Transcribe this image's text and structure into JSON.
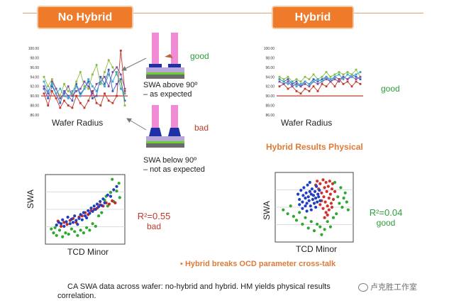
{
  "header": {
    "no_hybrid": "No Hybrid",
    "hybrid": "Hybrid"
  },
  "colors": {
    "accent": "#ef7a2a",
    "good": "#2e9e3b",
    "bad": "#c0392b",
    "baseline": "#c0392b"
  },
  "profiles": {
    "good_label": "good",
    "bad_label": "bad",
    "above_note_1": "SWA above 90º",
    "above_note_2": "– as expected",
    "below_note_1": "SWA below 90º",
    "below_note_2": "– not as expected"
  },
  "hybrid_notes": {
    "good_label": "good",
    "physical": "Hybrid Results Physical",
    "crosstalk": "Hybrid breaks OCD parameter cross-talk"
  },
  "caption": {
    "line1": "CA SWA data across wafer: no-hybrid and hybrid. HM yields physical results",
    "line2": "correlation."
  },
  "watermark": "卢克胜工作室",
  "chart_data": [
    {
      "id": "no-hybrid-radius",
      "type": "line",
      "xlabel": "Wafer Radius",
      "ylim": [
        86,
        100
      ],
      "yticks": [
        "100.00",
        "98.00",
        "96.00",
        "94.00",
        "92.00",
        "90.00",
        "88.00",
        "86.00"
      ],
      "baseline": 90,
      "series": [
        {
          "name": "s1",
          "color": "#3b5fbf",
          "values": [
            91.5,
            89.5,
            92,
            90.5,
            88.5,
            91,
            90,
            89,
            92.5,
            90.5,
            91.5,
            93,
            89.5,
            90,
            94,
            92.5,
            95.5,
            91,
            92.5,
            93.5,
            89
          ]
        },
        {
          "name": "s2",
          "color": "#c0392b",
          "values": [
            90.5,
            88,
            91,
            89.5,
            87.5,
            89,
            88,
            87.5,
            90,
            88.5,
            87.5,
            89,
            91,
            88.5,
            88,
            90.5,
            89,
            88.5,
            90,
            99.5,
            91
          ]
        },
        {
          "name": "s3",
          "color": "#8dbb44",
          "values": [
            94,
            92,
            93.5,
            91.5,
            90,
            92.5,
            91,
            90.5,
            93,
            95,
            92,
            91.5,
            94.5,
            96.5,
            92.5,
            95,
            97.5,
            96,
            94.5,
            93,
            88
          ]
        },
        {
          "name": "s4",
          "color": "#7d4fa5",
          "values": [
            92,
            90.5,
            93,
            91.5,
            89.5,
            90.5,
            92,
            90,
            91,
            91.5,
            93,
            92,
            90.5,
            92.5,
            93,
            94,
            92,
            95,
            96,
            94.5,
            91.5
          ]
        },
        {
          "name": "s5",
          "color": "#3aa6c9",
          "values": [
            93,
            91,
            92.5,
            90.5,
            91.5,
            90,
            89.5,
            91,
            92,
            90,
            91.5,
            93.5,
            92,
            91,
            93,
            92,
            94.5,
            93,
            95,
            91.5,
            90.5
          ]
        }
      ]
    },
    {
      "id": "hybrid-radius",
      "type": "line",
      "xlabel": "Wafer Radius",
      "ylim": [
        86,
        100
      ],
      "yticks": [
        "100.00",
        "98.00",
        "96.00",
        "94.00",
        "92.00",
        "90.00",
        "88.00",
        "86.00"
      ],
      "baseline": 90,
      "series": [
        {
          "name": "s1",
          "color": "#3b5fbf",
          "values": [
            93.5,
            93,
            93.5,
            92.5,
            93,
            92,
            93,
            92.5,
            93.5,
            93,
            93.5,
            94,
            93,
            94,
            93.5,
            94,
            93.5,
            94.5,
            94,
            93.5
          ]
        },
        {
          "name": "s2",
          "color": "#c0392b",
          "values": [
            92,
            92.5,
            91.5,
            92,
            91,
            90.5,
            91.5,
            91,
            92,
            91,
            92.5,
            92,
            93,
            92,
            93.5,
            92.5,
            93,
            92,
            93,
            92.5
          ]
        },
        {
          "name": "s3",
          "color": "#8dbb44",
          "values": [
            94,
            93.5,
            94,
            93,
            93.5,
            93,
            94,
            93.5,
            94.5,
            93.5,
            94,
            95,
            94,
            94.5,
            95,
            94.5,
            95,
            94.5,
            95.5,
            94
          ]
        },
        {
          "name": "s4",
          "color": "#7d4fa5",
          "values": [
            93,
            92.5,
            93,
            92,
            92.5,
            92,
            92.5,
            92,
            93,
            92.5,
            93,
            93.5,
            93,
            93.5,
            93,
            94,
            93.5,
            94,
            93.5,
            94
          ]
        },
        {
          "name": "s5",
          "color": "#3aa6c9",
          "values": [
            93.5,
            93,
            92.5,
            93,
            92,
            92.5,
            93,
            92.5,
            93,
            93.5,
            93,
            94,
            93.5,
            94,
            94.5,
            93.5,
            94.5,
            94,
            94.5,
            95
          ]
        }
      ]
    },
    {
      "id": "no-hybrid-scatter",
      "type": "scatter",
      "xlabel": "TCD Minor",
      "ylabel": "SWA",
      "annotation": "R²=0.55",
      "annotation_sub": "bad",
      "xlim": [
        0,
        100
      ],
      "ylim": [
        0,
        100
      ],
      "series": [
        {
          "name": "blue",
          "color": "#1f3fbf",
          "points": [
            [
              12,
              26
            ],
            [
              15,
              30
            ],
            [
              18,
              28
            ],
            [
              20,
              34
            ],
            [
              22,
              24
            ],
            [
              25,
              31
            ],
            [
              27,
              38
            ],
            [
              30,
              28
            ],
            [
              32,
              35
            ],
            [
              34,
              30
            ],
            [
              36,
              40
            ],
            [
              38,
              33
            ],
            [
              40,
              27
            ],
            [
              42,
              36
            ],
            [
              44,
              42
            ],
            [
              46,
              34
            ],
            [
              48,
              45
            ],
            [
              50,
              40
            ],
            [
              52,
              37
            ],
            [
              54,
              48
            ],
            [
              56,
              44
            ],
            [
              58,
              52
            ],
            [
              60,
              47
            ],
            [
              62,
              55
            ],
            [
              64,
              50
            ],
            [
              66,
              58
            ],
            [
              68,
              54
            ],
            [
              70,
              62
            ],
            [
              72,
              56
            ],
            [
              74,
              66
            ],
            [
              76,
              60
            ],
            [
              80,
              72
            ],
            [
              84,
              70
            ],
            [
              88,
              80
            ],
            [
              92,
              85
            ]
          ]
        },
        {
          "name": "red",
          "color": "#c62828",
          "points": [
            [
              14,
              32
            ],
            [
              18,
              24
            ],
            [
              22,
              30
            ],
            [
              26,
              27
            ],
            [
              30,
              33
            ],
            [
              34,
              36
            ],
            [
              38,
              30
            ],
            [
              42,
              38
            ],
            [
              46,
              40
            ],
            [
              50,
              45
            ],
            [
              54,
              42
            ],
            [
              58,
              48
            ],
            [
              62,
              50
            ],
            [
              66,
              52
            ],
            [
              70,
              57
            ],
            [
              74,
              55
            ],
            [
              78,
              60
            ],
            [
              82,
              58
            ],
            [
              86,
              63
            ],
            [
              90,
              60
            ]
          ]
        },
        {
          "name": "green",
          "color": "#2fa82f",
          "points": [
            [
              5,
              20
            ],
            [
              8,
              14
            ],
            [
              10,
              22
            ],
            [
              12,
              10
            ],
            [
              16,
              18
            ],
            [
              20,
              8
            ],
            [
              24,
              14
            ],
            [
              28,
              12
            ],
            [
              32,
              20
            ],
            [
              36,
              16
            ],
            [
              40,
              10
            ],
            [
              44,
              18
            ],
            [
              48,
              14
            ],
            [
              52,
              22
            ],
            [
              56,
              18
            ],
            [
              60,
              28
            ],
            [
              64,
              24
            ],
            [
              68,
              40
            ],
            [
              72,
              45
            ],
            [
              76,
              64
            ],
            [
              80,
              55
            ],
            [
              84,
              76
            ],
            [
              88,
              62
            ],
            [
              92,
              78
            ],
            [
              95,
              90
            ],
            [
              86,
              96
            ],
            [
              78,
              70
            ],
            [
              96,
              68
            ]
          ]
        }
      ]
    },
    {
      "id": "hybrid-scatter",
      "type": "scatter",
      "xlabel": "TCD Minor",
      "ylabel": "SWA",
      "annotation": "R²=0.04",
      "annotation_sub": "good",
      "xlim": [
        0,
        100
      ],
      "ylim": [
        0,
        100
      ],
      "series": [
        {
          "name": "blue",
          "color": "#1f3fbf",
          "points": [
            [
              28,
              70
            ],
            [
              30,
              62
            ],
            [
              32,
              76
            ],
            [
              34,
              58
            ],
            [
              35,
              68
            ],
            [
              36,
              80
            ],
            [
              38,
              64
            ],
            [
              39,
              72
            ],
            [
              40,
              56
            ],
            [
              41,
              84
            ],
            [
              42,
              66
            ],
            [
              43,
              60
            ],
            [
              44,
              74
            ],
            [
              45,
              52
            ],
            [
              46,
              70
            ],
            [
              47,
              78
            ],
            [
              48,
              62
            ],
            [
              49,
              68
            ],
            [
              50,
              56
            ],
            [
              51,
              74
            ],
            [
              52,
              64
            ],
            [
              53,
              82
            ],
            [
              54,
              58
            ],
            [
              55,
              70
            ],
            [
              56,
              66
            ],
            [
              57,
              76
            ],
            [
              58,
              60
            ],
            [
              34,
              48
            ],
            [
              40,
              44
            ],
            [
              46,
              46
            ],
            [
              52,
              50
            ],
            [
              30,
              54
            ],
            [
              44,
              88
            ],
            [
              38,
              52
            ]
          ]
        },
        {
          "name": "red",
          "color": "#d0312d",
          "points": [
            [
              52,
              84
            ],
            [
              54,
              90
            ],
            [
              56,
              78
            ],
            [
              58,
              86
            ],
            [
              60,
              72
            ],
            [
              62,
              92
            ],
            [
              63,
              66
            ],
            [
              64,
              80
            ],
            [
              65,
              58
            ],
            [
              66,
              88
            ],
            [
              67,
              74
            ],
            [
              68,
              52
            ],
            [
              69,
              82
            ],
            [
              70,
              64
            ],
            [
              71,
              90
            ],
            [
              72,
              70
            ],
            [
              73,
              56
            ],
            [
              74,
              78
            ],
            [
              75,
              86
            ],
            [
              76,
              62
            ],
            [
              62,
              48
            ],
            [
              66,
              42
            ],
            [
              70,
              46
            ],
            [
              74,
              50
            ],
            [
              60,
              60
            ],
            [
              78,
              74
            ],
            [
              58,
              54
            ],
            [
              64,
              34
            ],
            [
              68,
              38
            ]
          ]
        },
        {
          "name": "green",
          "color": "#2fa82f",
          "points": [
            [
              8,
              46
            ],
            [
              14,
              40
            ],
            [
              18,
              52
            ],
            [
              22,
              36
            ],
            [
              26,
              30
            ],
            [
              30,
              42
            ],
            [
              34,
              24
            ],
            [
              38,
              34
            ],
            [
              42,
              18
            ],
            [
              46,
              28
            ],
            [
              50,
              14
            ],
            [
              54,
              24
            ],
            [
              58,
              20
            ],
            [
              60,
              8
            ],
            [
              64,
              16
            ],
            [
              68,
              28
            ],
            [
              72,
              20
            ],
            [
              76,
              34
            ],
            [
              80,
              40
            ],
            [
              84,
              56
            ],
            [
              88,
              50
            ],
            [
              90,
              64
            ],
            [
              92,
              72
            ],
            [
              86,
              80
            ],
            [
              94,
              58
            ],
            [
              82,
              66
            ],
            [
              78,
              88
            ],
            [
              96,
              46
            ]
          ]
        }
      ]
    }
  ]
}
